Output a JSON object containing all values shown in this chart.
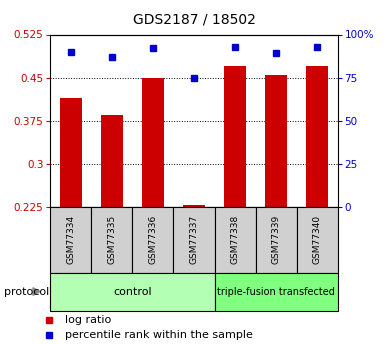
{
  "title": "GDS2187 / 18502",
  "samples": [
    "GSM77334",
    "GSM77335",
    "GSM77336",
    "GSM77337",
    "GSM77338",
    "GSM77339",
    "GSM77340"
  ],
  "log_ratio": [
    0.415,
    0.385,
    0.45,
    0.228,
    0.47,
    0.455,
    0.47
  ],
  "percentile_rank": [
    90,
    87,
    92,
    75,
    93,
    89,
    93
  ],
  "ylim_left": [
    0.225,
    0.525
  ],
  "ylim_right": [
    0,
    100
  ],
  "yticks_left": [
    0.225,
    0.3,
    0.375,
    0.45,
    0.525
  ],
  "yticks_right": [
    0,
    25,
    50,
    75,
    100
  ],
  "ytick_labels_left": [
    "0.225",
    "0.3",
    "0.375",
    "0.45",
    "0.525"
  ],
  "ytick_labels_right": [
    "0",
    "25",
    "50",
    "75",
    "100%"
  ],
  "bar_color": "#cc0000",
  "bar_baseline": 0.225,
  "dot_color": "#0000cc",
  "protocol_groups": [
    {
      "label": "control",
      "indices": [
        0,
        1,
        2,
        3
      ],
      "color": "#b3ffb3"
    },
    {
      "label": "triple-fusion transfected",
      "indices": [
        4,
        5,
        6
      ],
      "color": "#80ff80"
    }
  ],
  "protocol_label": "protocol",
  "legend_items": [
    {
      "label": "log ratio",
      "color": "#cc0000"
    },
    {
      "label": "percentile rank within the sample",
      "color": "#0000cc"
    }
  ],
  "bg_color": "#ffffff",
  "sample_box_color": "#d0d0d0",
  "title_fontsize": 10,
  "tick_fontsize": 7.5,
  "legend_fontsize": 8
}
